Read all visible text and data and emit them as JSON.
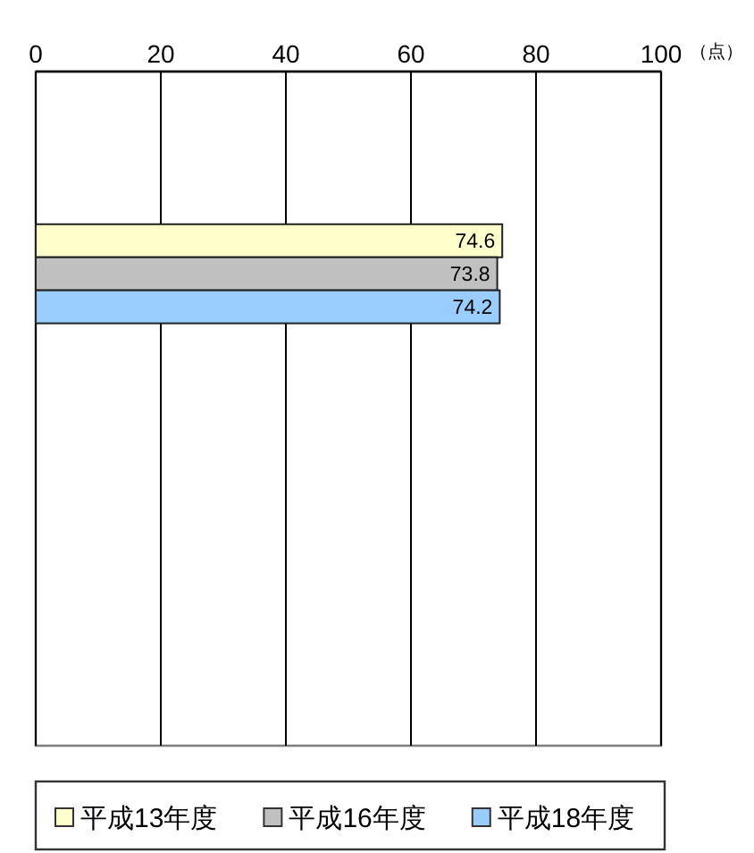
{
  "chart_data": {
    "type": "bar",
    "orientation": "horizontal",
    "categories": [
      null
    ],
    "series": [
      {
        "name": "平成13年度",
        "color": "#ffffcc",
        "values": [
          74.6
        ]
      },
      {
        "name": "平成16年度",
        "color": "#c0c0c0",
        "values": [
          73.8
        ]
      },
      {
        "name": "平成18年度",
        "color": "#99ccff",
        "values": [
          74.2
        ]
      }
    ],
    "xlim": [
      0,
      100
    ],
    "xticks": [
      0,
      20,
      40,
      60,
      80,
      100
    ],
    "xlabel": "（点）",
    "grid": "x",
    "legend": "bottom",
    "data_labels": true,
    "tick_labels": "x"
  }
}
